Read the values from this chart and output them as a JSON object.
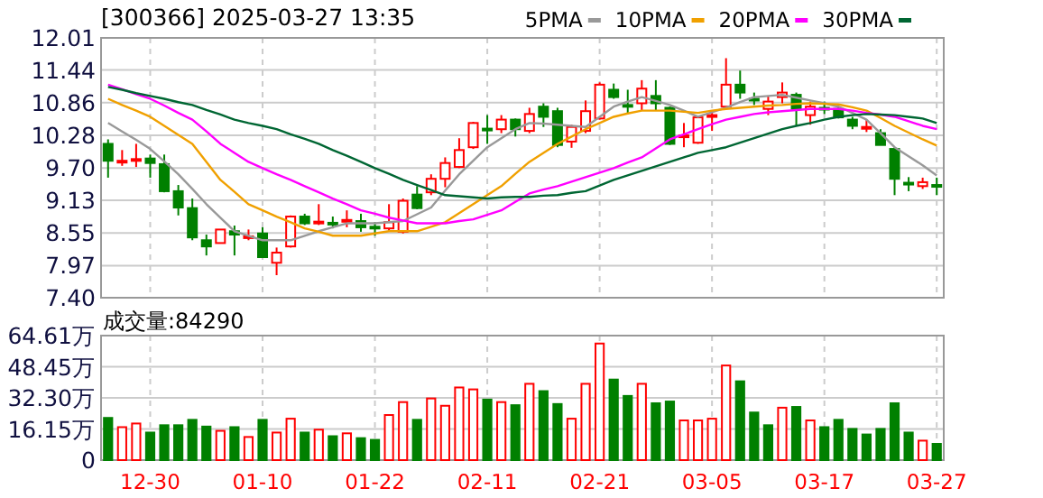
{
  "chart_data": [
    {
      "type": "candlestick",
      "title": "[300366] 2025-03-27 13:35",
      "categories": [
        null,
        null,
        null,
        null,
        null,
        null,
        null,
        null,
        null,
        null,
        null,
        null,
        null,
        null,
        null,
        null,
        null,
        null,
        null,
        null,
        null,
        null,
        null,
        null,
        null,
        null,
        null,
        null,
        null,
        null,
        null,
        null,
        null,
        null,
        null,
        null,
        null,
        null,
        null,
        null,
        null,
        null,
        null,
        null,
        null,
        null,
        null,
        null,
        null,
        null,
        null,
        null,
        null,
        null,
        null,
        null,
        null,
        null,
        null,
        null
      ],
      "ohlc": [
        [
          10.13,
          10.21,
          9.53,
          9.83
        ],
        [
          9.82,
          10.02,
          9.74,
          9.83
        ],
        [
          9.85,
          10.13,
          9.72,
          9.86
        ],
        [
          9.87,
          9.94,
          9.53,
          9.79
        ],
        [
          9.77,
          9.94,
          9.27,
          9.29
        ],
        [
          9.29,
          9.4,
          8.86,
          9.0
        ],
        [
          8.99,
          9.16,
          8.42,
          8.47
        ],
        [
          8.42,
          8.52,
          8.15,
          8.31
        ],
        [
          8.37,
          8.61,
          8.37,
          8.61
        ],
        [
          8.58,
          8.68,
          8.15,
          8.52
        ],
        [
          8.46,
          8.61,
          8.42,
          8.49
        ],
        [
          8.54,
          8.65,
          8.12,
          8.12
        ],
        [
          8.02,
          8.29,
          7.8,
          8.2
        ],
        [
          8.31,
          8.86,
          8.29,
          8.84
        ],
        [
          8.84,
          8.89,
          8.69,
          8.72
        ],
        [
          8.74,
          9.06,
          8.69,
          8.75
        ],
        [
          8.73,
          8.84,
          8.63,
          8.71
        ],
        [
          8.76,
          8.95,
          8.65,
          8.78
        ],
        [
          8.76,
          8.89,
          8.57,
          8.65
        ],
        [
          8.66,
          8.74,
          8.5,
          8.65
        ],
        [
          8.63,
          9.06,
          8.58,
          8.74
        ],
        [
          8.57,
          9.16,
          8.54,
          9.12
        ],
        [
          9.23,
          9.38,
          8.97,
          8.99
        ],
        [
          9.27,
          9.59,
          9.22,
          9.51
        ],
        [
          9.51,
          9.89,
          9.36,
          9.79
        ],
        [
          9.72,
          10.23,
          9.7,
          10.02
        ],
        [
          10.07,
          10.52,
          10.04,
          10.5
        ],
        [
          10.4,
          10.64,
          10.13,
          10.39
        ],
        [
          10.39,
          10.64,
          10.32,
          10.56
        ],
        [
          10.56,
          10.58,
          10.26,
          10.39
        ],
        [
          10.36,
          10.77,
          10.32,
          10.66
        ],
        [
          10.79,
          10.85,
          10.43,
          10.61
        ],
        [
          10.71,
          10.77,
          10.07,
          10.11
        ],
        [
          10.17,
          10.47,
          10.06,
          10.43
        ],
        [
          10.36,
          10.9,
          10.32,
          10.71
        ],
        [
          10.58,
          11.22,
          10.56,
          11.18
        ],
        [
          11.09,
          11.2,
          10.93,
          10.96
        ],
        [
          10.82,
          11.09,
          10.66,
          10.8
        ],
        [
          10.85,
          11.26,
          10.72,
          11.11
        ],
        [
          10.98,
          11.26,
          10.72,
          10.85
        ],
        [
          10.77,
          10.79,
          10.11,
          10.13
        ],
        [
          10.26,
          10.5,
          10.07,
          10.28
        ],
        [
          10.15,
          10.6,
          10.13,
          10.6
        ],
        [
          10.62,
          10.72,
          10.36,
          10.64
        ],
        [
          10.79,
          11.65,
          10.77,
          11.18
        ],
        [
          11.18,
          11.43,
          10.93,
          11.04
        ],
        [
          10.93,
          11.04,
          10.82,
          10.92
        ],
        [
          10.75,
          10.98,
          10.64,
          10.88
        ],
        [
          10.96,
          11.22,
          10.85,
          11.04
        ],
        [
          11.0,
          11.04,
          10.45,
          10.75
        ],
        [
          10.64,
          10.88,
          10.47,
          10.79
        ],
        [
          10.77,
          10.88,
          10.66,
          10.76
        ],
        [
          10.75,
          10.79,
          10.58,
          10.6
        ],
        [
          10.56,
          10.61,
          10.39,
          10.45
        ],
        [
          10.41,
          10.56,
          10.34,
          10.43
        ],
        [
          10.32,
          10.39,
          10.11,
          10.11
        ],
        [
          10.04,
          10.07,
          9.22,
          9.51
        ],
        [
          9.44,
          9.54,
          9.29,
          9.43
        ],
        [
          9.38,
          9.53,
          9.33,
          9.45
        ],
        [
          9.4,
          9.53,
          9.22,
          9.39
        ]
      ],
      "colors": [
        "#008000",
        "#ff0000",
        "#ff0000",
        "#008000",
        "#008000",
        "#008000",
        "#008000",
        "#008000",
        "#ff0000",
        "#008000",
        "#ff0000",
        "#008000",
        "#ff0000",
        "#ff0000",
        "#008000",
        "#ff0000",
        "#008000",
        "#ff0000",
        "#008000",
        "#008000",
        "#ff0000",
        "#ff0000",
        "#008000",
        "#ff0000",
        "#ff0000",
        "#ff0000",
        "#ff0000",
        "#008000",
        "#ff0000",
        "#008000",
        "#ff0000",
        "#008000",
        "#008000",
        "#ff0000",
        "#ff0000",
        "#ff0000",
        "#008000",
        "#008000",
        "#ff0000",
        "#008000",
        "#008000",
        "#ff0000",
        "#ff0000",
        "#ff0000",
        "#ff0000",
        "#008000",
        "#008000",
        "#ff0000",
        "#ff0000",
        "#008000",
        "#ff0000",
        "#008000",
        "#008000",
        "#008000",
        "#ff0000",
        "#008000",
        "#008000",
        "#008000",
        "#ff0000",
        "#008000"
      ],
      "series": [
        {
          "type": "line",
          "name": "5PMA",
          "color": "#999999",
          "values": [
            10.5,
            10.35,
            10.2,
            10.04,
            9.82,
            9.59,
            9.33,
            9.06,
            8.82,
            8.58,
            8.5,
            8.42,
            8.42,
            8.42,
            8.5,
            8.58,
            8.65,
            8.72,
            8.72,
            8.72,
            8.74,
            8.76,
            8.88,
            9.0,
            9.3,
            9.59,
            9.83,
            10.07,
            10.23,
            10.39,
            10.5,
            10.49,
            10.47,
            10.45,
            10.43,
            10.61,
            10.79,
            10.88,
            10.96,
            10.89,
            10.82,
            10.72,
            10.61,
            10.69,
            10.77,
            10.87,
            10.96,
            10.98,
            11.0,
            10.95,
            10.9,
            10.85,
            10.79,
            10.68,
            10.56,
            10.32,
            10.07,
            9.91,
            9.75,
            9.57
          ]
        },
        {
          "type": "line",
          "name": "10PMA",
          "color": "#f0a000",
          "values": [
            10.93,
            10.82,
            10.72,
            10.61,
            10.45,
            10.29,
            10.13,
            9.81,
            9.49,
            9.28,
            9.06,
            8.95,
            8.84,
            8.74,
            8.63,
            8.57,
            8.5,
            8.5,
            8.5,
            8.54,
            8.58,
            8.58,
            8.58,
            8.66,
            8.74,
            8.9,
            9.06,
            9.22,
            9.38,
            9.6,
            9.81,
            9.97,
            10.13,
            10.26,
            10.39,
            10.5,
            10.61,
            10.67,
            10.72,
            10.72,
            10.72,
            10.7,
            10.68,
            10.72,
            10.75,
            10.77,
            10.79,
            10.81,
            10.82,
            10.84,
            10.85,
            10.84,
            10.83,
            10.78,
            10.72,
            10.59,
            10.45,
            10.33,
            10.21,
            10.1
          ]
        },
        {
          "type": "line",
          "name": "20PMA",
          "color": "#ff00ff",
          "values": [
            11.18,
            11.1,
            11.01,
            10.93,
            10.81,
            10.68,
            10.56,
            10.35,
            10.13,
            9.97,
            9.81,
            9.7,
            9.59,
            9.49,
            9.38,
            9.27,
            9.16,
            9.06,
            8.95,
            8.89,
            8.82,
            8.77,
            8.72,
            8.72,
            8.72,
            8.76,
            8.79,
            8.87,
            8.95,
            9.1,
            9.25,
            9.32,
            9.38,
            9.46,
            9.54,
            9.62,
            9.7,
            9.8,
            9.89,
            10.05,
            10.21,
            10.3,
            10.39,
            10.48,
            10.56,
            10.61,
            10.66,
            10.69,
            10.71,
            10.73,
            10.75,
            10.75,
            10.75,
            10.72,
            10.68,
            10.65,
            10.61,
            10.53,
            10.45,
            10.39
          ]
        },
        {
          "type": "line",
          "name": "30PMA",
          "color": "#006633",
          "values": [
            11.14,
            11.09,
            11.03,
            10.98,
            10.93,
            10.87,
            10.82,
            10.73,
            10.65,
            10.56,
            10.5,
            10.45,
            10.39,
            10.3,
            10.22,
            10.13,
            10.02,
            9.92,
            9.81,
            9.7,
            9.6,
            9.49,
            9.4,
            9.31,
            9.22,
            9.2,
            9.18,
            9.16,
            9.18,
            9.19,
            9.19,
            9.21,
            9.22,
            9.26,
            9.29,
            9.39,
            9.49,
            9.57,
            9.65,
            9.73,
            9.81,
            9.89,
            9.97,
            10.02,
            10.07,
            10.15,
            10.23,
            10.31,
            10.39,
            10.45,
            10.5,
            10.56,
            10.61,
            10.64,
            10.66,
            10.65,
            10.64,
            10.61,
            10.58,
            10.5
          ]
        }
      ],
      "ylim": [
        7.4,
        12.01
      ],
      "yticks": [
        {
          "value": 7.4,
          "label": "7.40"
        },
        {
          "value": 7.97,
          "label": "7.97"
        },
        {
          "value": 8.55,
          "label": "8.55"
        },
        {
          "value": 9.13,
          "label": "9.13"
        },
        {
          "value": 9.7,
          "label": "9.70"
        },
        {
          "value": 10.28,
          "label": "10.28"
        },
        {
          "value": 10.86,
          "label": "10.86"
        },
        {
          "value": 11.44,
          "label": "11.44"
        },
        {
          "value": 12.01,
          "label": "12.01"
        }
      ],
      "grid": true,
      "legend": "top right",
      "tick_labels": "y"
    },
    {
      "type": "bar",
      "categories": [
        null,
        null,
        null,
        "12-30",
        null,
        null,
        null,
        null,
        null,
        null,
        null,
        "01-10",
        null,
        null,
        null,
        null,
        null,
        null,
        null,
        "01-22",
        null,
        null,
        null,
        null,
        null,
        null,
        null,
        "02-11",
        null,
        null,
        null,
        null,
        null,
        null,
        null,
        "02-21",
        null,
        null,
        null,
        null,
        null,
        null,
        null,
        "03-05",
        null,
        null,
        null,
        null,
        null,
        null,
        null,
        "03-17",
        null,
        null,
        null,
        null,
        null,
        null,
        null,
        "03-27"
      ],
      "values": [
        21.9,
        17.1,
        19.0,
        14.3,
        18.1,
        18.1,
        20.9,
        17.4,
        15.2,
        17.1,
        12.0,
        20.9,
        14.3,
        21.5,
        14.3,
        15.8,
        12.4,
        13.9,
        11.4,
        10.5,
        23.4,
        30.1,
        20.9,
        32.0,
        28.2,
        37.7,
        36.7,
        31.4,
        30.1,
        28.5,
        39.6,
        35.8,
        29.1,
        21.5,
        39.6,
        60.5,
        41.8,
        33.3,
        39.6,
        29.5,
        30.4,
        20.6,
        20.6,
        21.5,
        49.1,
        40.9,
        24.7,
        18.1,
        27.2,
        27.6,
        20.6,
        17.1,
        20.9,
        16.2,
        13.3,
        16.2,
        29.5,
        14.3,
        10.1,
        8.43
      ],
      "colors": [
        "#008000",
        "#ff0000",
        "#ff0000",
        "#008000",
        "#008000",
        "#008000",
        "#008000",
        "#008000",
        "#ff0000",
        "#008000",
        "#ff0000",
        "#008000",
        "#ff0000",
        "#ff0000",
        "#008000",
        "#ff0000",
        "#008000",
        "#ff0000",
        "#008000",
        "#008000",
        "#ff0000",
        "#ff0000",
        "#008000",
        "#ff0000",
        "#ff0000",
        "#ff0000",
        "#ff0000",
        "#008000",
        "#ff0000",
        "#008000",
        "#ff0000",
        "#008000",
        "#008000",
        "#ff0000",
        "#ff0000",
        "#ff0000",
        "#008000",
        "#008000",
        "#ff0000",
        "#008000",
        "#008000",
        "#ff0000",
        "#ff0000",
        "#ff0000",
        "#ff0000",
        "#008000",
        "#008000",
        "#008000",
        "#ff0000",
        "#008000",
        "#ff0000",
        "#008000",
        "#008000",
        "#008000",
        "#008000",
        "#008000",
        "#008000",
        "#008000",
        "#ff0000",
        "#008000"
      ],
      "ylim": [
        0,
        64.61
      ],
      "yticks": [
        {
          "value": 0,
          "label": "0"
        },
        {
          "value": 16.15,
          "label": "16.15万"
        },
        {
          "value": 32.3,
          "label": "32.30万"
        },
        {
          "value": 48.45,
          "label": "48.45万"
        },
        {
          "value": 64.61,
          "label": "64.61万"
        }
      ],
      "grid": true,
      "annotations": [
        "成交量:84290"
      ]
    }
  ]
}
